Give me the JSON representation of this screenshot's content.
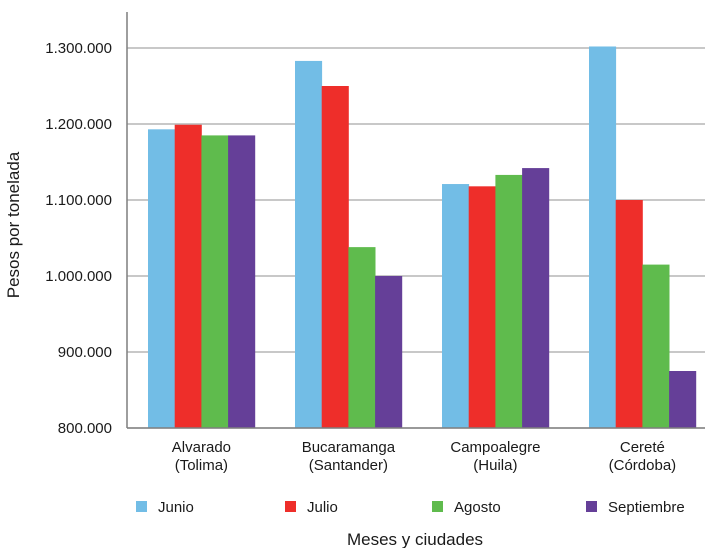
{
  "chart_data": {
    "type": "bar",
    "categories": [
      [
        "Alvarado",
        "(Tolima)"
      ],
      [
        "Bucaramanga",
        "(Santander)"
      ],
      [
        "Campoalegre",
        "(Huila)"
      ],
      [
        "Cereté",
        "(Córdoba)"
      ]
    ],
    "series": [
      {
        "name": "Junio",
        "color": "#72bde6",
        "values": [
          1193000,
          1283000,
          1121000,
          1302000
        ]
      },
      {
        "name": "Julio",
        "color": "#ee2e2a",
        "values": [
          1199000,
          1250000,
          1118000,
          1100000
        ]
      },
      {
        "name": "Agosto",
        "color": "#5fbb4d",
        "values": [
          1185000,
          1038000,
          1133000,
          1015000
        ]
      },
      {
        "name": "Septiembre",
        "color": "#653f98",
        "values": [
          1185000,
          1000000,
          1142000,
          875000
        ]
      }
    ],
    "ylim": [
      800000,
      1350000
    ],
    "yticks": [
      800000,
      900000,
      1000000,
      1100000,
      1200000,
      1300000
    ],
    "ytick_labels": [
      "800.000",
      "900.000",
      "1.000.000",
      "1.100.000",
      "1.200.000",
      "1.300.000"
    ],
    "ylabel": "Pesos por tonelada",
    "xlabel": "Meses y ciudades",
    "grid": true,
    "legend": "bottom"
  }
}
